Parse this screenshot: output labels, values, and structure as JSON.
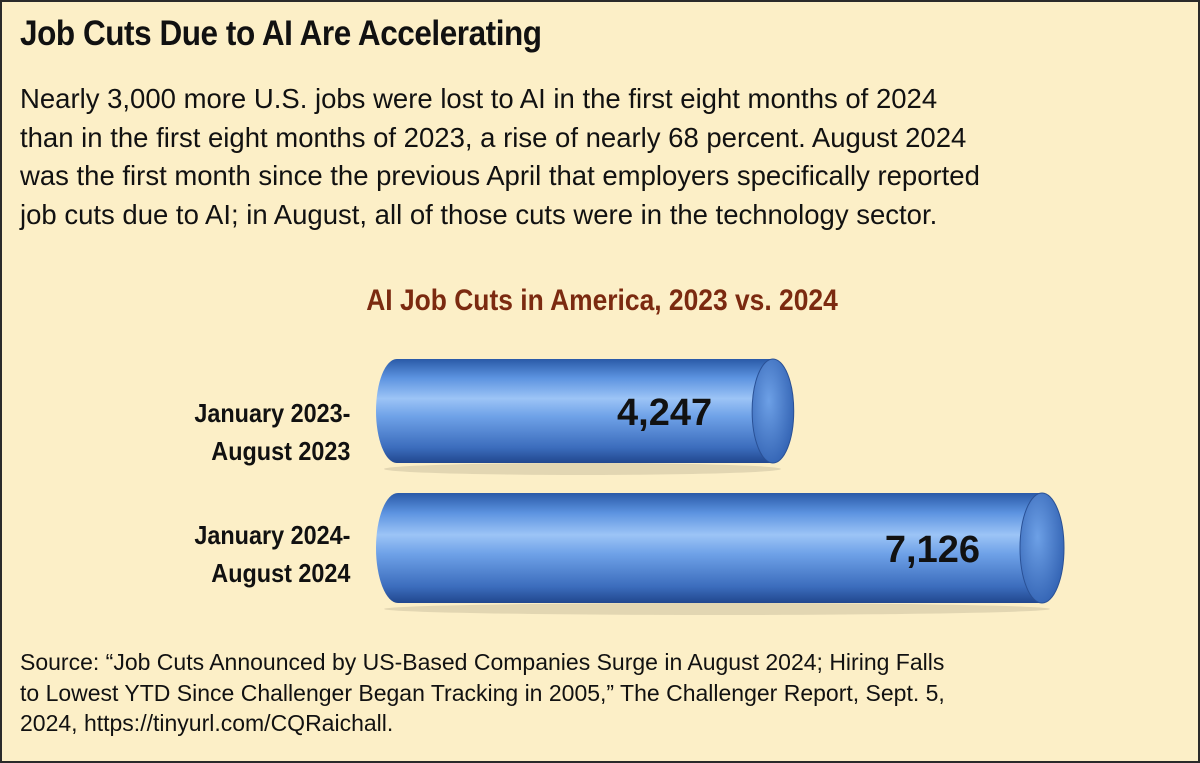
{
  "title": "Job Cuts Due to AI Are Accelerating",
  "intro_lines": [
    "Nearly 3,000 more U.S. jobs were lost to AI in the first eight months of 2024",
    "than in the first eight months of 2023, a rise of nearly 68 percent. August 2024",
    "was the first month since the previous April that employers specifically reported",
    "job cuts due to AI; in August, all of those cuts were in the technology sector."
  ],
  "source_lines": [
    "Source: “Job Cuts Announced by US-Based Companies Surge in August 2024; Hiring Falls",
    "to Lowest YTD Since Challenger Began Tracking in 2005,” The Challenger Report, Sept. 5,",
    "2024, https://tinyurl.com/CQRaichall."
  ],
  "colors": {
    "background": "#fcefc7",
    "bar": "#4f86d8",
    "chart_title": "#7b2a10"
  },
  "chart_data": {
    "type": "bar",
    "orientation": "horizontal",
    "title": "AI Job Cuts in America, 2023 vs. 2024",
    "categories": [
      [
        "January 2023-",
        "August 2023"
      ],
      [
        "January 2024-",
        "August 2024"
      ]
    ],
    "values": [
      4247,
      7126
    ],
    "data_labels": [
      "4,247",
      "7,126"
    ],
    "xlabel": "",
    "ylabel": "",
    "grid": false,
    "legend": "none"
  }
}
